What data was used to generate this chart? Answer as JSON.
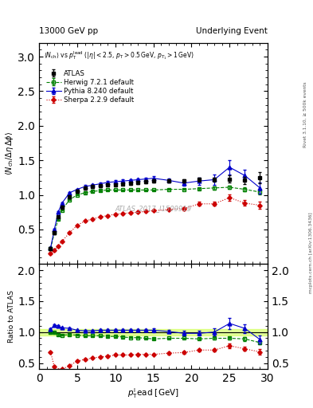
{
  "title_left": "13000 GeV pp",
  "title_right": "Underlying Event",
  "plot_label": "ATLAS_2017_I1509919",
  "rivet_label": "Rivet 3.1.10, ≥ 500k events",
  "mcplots_label": "mcplots.cern.ch [arXiv:1306.3436]",
  "xlim": [
    0,
    30
  ],
  "ylim_main": [
    0,
    3.2
  ],
  "ylim_ratio": [
    0.4,
    2.1
  ],
  "yticks_main": [
    0.5,
    1.0,
    1.5,
    2.0,
    2.5,
    3.0
  ],
  "yticks_ratio": [
    0.5,
    1.0,
    1.5,
    2.0
  ],
  "atlas_x": [
    1.5,
    2.0,
    2.5,
    3.0,
    4.0,
    5.0,
    6.0,
    7.0,
    8.0,
    9.0,
    10.0,
    11.0,
    12.0,
    13.0,
    14.0,
    15.0,
    17.0,
    19.0,
    21.0,
    23.0,
    25.0,
    27.0,
    29.0
  ],
  "atlas_y": [
    0.22,
    0.45,
    0.68,
    0.82,
    0.97,
    1.05,
    1.1,
    1.12,
    1.13,
    1.15,
    1.15,
    1.16,
    1.17,
    1.18,
    1.19,
    1.2,
    1.2,
    1.2,
    1.22,
    1.22,
    1.23,
    1.21,
    1.25
  ],
  "atlas_yerr": [
    0.02,
    0.02,
    0.02,
    0.02,
    0.02,
    0.02,
    0.02,
    0.02,
    0.02,
    0.02,
    0.02,
    0.02,
    0.02,
    0.02,
    0.02,
    0.02,
    0.02,
    0.02,
    0.03,
    0.03,
    0.05,
    0.05,
    0.08
  ],
  "herwig_x": [
    1.5,
    2.0,
    2.5,
    3.0,
    4.0,
    5.0,
    6.0,
    7.0,
    8.0,
    9.0,
    10.0,
    11.0,
    12.0,
    13.0,
    14.0,
    15.0,
    17.0,
    19.0,
    21.0,
    23.0,
    25.0,
    27.0,
    29.0
  ],
  "herwig_y": [
    0.22,
    0.45,
    0.65,
    0.78,
    0.93,
    1.0,
    1.03,
    1.05,
    1.06,
    1.07,
    1.07,
    1.07,
    1.07,
    1.07,
    1.07,
    1.07,
    1.08,
    1.08,
    1.09,
    1.1,
    1.11,
    1.08,
    1.04
  ],
  "herwig_yerr": [
    0.01,
    0.01,
    0.01,
    0.01,
    0.01,
    0.01,
    0.01,
    0.01,
    0.01,
    0.01,
    0.01,
    0.01,
    0.01,
    0.01,
    0.01,
    0.01,
    0.01,
    0.01,
    0.01,
    0.02,
    0.02,
    0.03,
    0.03
  ],
  "pythia_x": [
    1.5,
    2.0,
    2.5,
    3.0,
    4.0,
    5.0,
    6.0,
    7.0,
    8.0,
    9.0,
    10.0,
    11.0,
    12.0,
    13.0,
    14.0,
    15.0,
    17.0,
    19.0,
    21.0,
    23.0,
    25.0,
    27.0,
    29.0
  ],
  "pythia_y": [
    0.23,
    0.5,
    0.75,
    0.88,
    1.03,
    1.08,
    1.12,
    1.14,
    1.16,
    1.18,
    1.19,
    1.2,
    1.21,
    1.22,
    1.23,
    1.24,
    1.21,
    1.17,
    1.2,
    1.22,
    1.4,
    1.28,
    1.1
  ],
  "pythia_yerr": [
    0.01,
    0.01,
    0.01,
    0.01,
    0.01,
    0.01,
    0.02,
    0.02,
    0.02,
    0.02,
    0.02,
    0.02,
    0.02,
    0.02,
    0.02,
    0.03,
    0.03,
    0.04,
    0.05,
    0.07,
    0.1,
    0.08,
    0.08
  ],
  "sherpa_x": [
    1.5,
    2.0,
    2.5,
    3.0,
    4.0,
    5.0,
    6.0,
    7.0,
    8.0,
    9.0,
    10.0,
    11.0,
    12.0,
    13.0,
    14.0,
    15.0,
    17.0,
    19.0,
    21.0,
    23.0,
    25.0,
    27.0,
    29.0
  ],
  "sherpa_y": [
    0.15,
    0.2,
    0.26,
    0.33,
    0.45,
    0.56,
    0.62,
    0.65,
    0.68,
    0.7,
    0.72,
    0.73,
    0.74,
    0.75,
    0.76,
    0.77,
    0.79,
    0.8,
    0.87,
    0.87,
    0.96,
    0.88,
    0.85
  ],
  "sherpa_yerr": [
    0.01,
    0.01,
    0.01,
    0.01,
    0.01,
    0.01,
    0.01,
    0.01,
    0.01,
    0.01,
    0.01,
    0.01,
    0.01,
    0.01,
    0.01,
    0.01,
    0.02,
    0.02,
    0.03,
    0.03,
    0.05,
    0.04,
    0.05
  ],
  "herwig_ratio": [
    1.0,
    1.0,
    0.96,
    0.95,
    0.96,
    0.95,
    0.94,
    0.94,
    0.94,
    0.93,
    0.93,
    0.92,
    0.91,
    0.91,
    0.9,
    0.89,
    0.9,
    0.9,
    0.89,
    0.9,
    0.9,
    0.89,
    0.83
  ],
  "pythia_ratio": [
    1.05,
    1.11,
    1.1,
    1.07,
    1.06,
    1.03,
    1.02,
    1.02,
    1.03,
    1.03,
    1.03,
    1.03,
    1.03,
    1.03,
    1.03,
    1.03,
    1.01,
    0.98,
    0.98,
    1.0,
    1.14,
    1.06,
    0.88
  ],
  "sherpa_ratio": [
    0.68,
    0.44,
    0.38,
    0.4,
    0.46,
    0.53,
    0.56,
    0.58,
    0.6,
    0.61,
    0.63,
    0.63,
    0.63,
    0.64,
    0.64,
    0.64,
    0.66,
    0.67,
    0.71,
    0.71,
    0.78,
    0.73,
    0.68
  ],
  "herwig_ratio_err": [
    0.01,
    0.01,
    0.01,
    0.01,
    0.01,
    0.01,
    0.01,
    0.01,
    0.01,
    0.01,
    0.01,
    0.01,
    0.01,
    0.01,
    0.01,
    0.01,
    0.01,
    0.01,
    0.01,
    0.02,
    0.02,
    0.03,
    0.03
  ],
  "pythia_ratio_err": [
    0.01,
    0.01,
    0.01,
    0.01,
    0.01,
    0.01,
    0.02,
    0.02,
    0.02,
    0.02,
    0.02,
    0.02,
    0.02,
    0.02,
    0.02,
    0.03,
    0.03,
    0.04,
    0.04,
    0.06,
    0.09,
    0.07,
    0.07
  ],
  "sherpa_ratio_err": [
    0.01,
    0.01,
    0.01,
    0.01,
    0.01,
    0.01,
    0.01,
    0.01,
    0.01,
    0.01,
    0.01,
    0.01,
    0.01,
    0.01,
    0.01,
    0.01,
    0.02,
    0.02,
    0.02,
    0.02,
    0.04,
    0.03,
    0.04
  ],
  "color_atlas": "black",
  "color_herwig": "#008000",
  "color_pythia": "#0000cc",
  "color_sherpa": "#cc0000",
  "band_color": "#ccff44",
  "band_alpha": 0.55
}
